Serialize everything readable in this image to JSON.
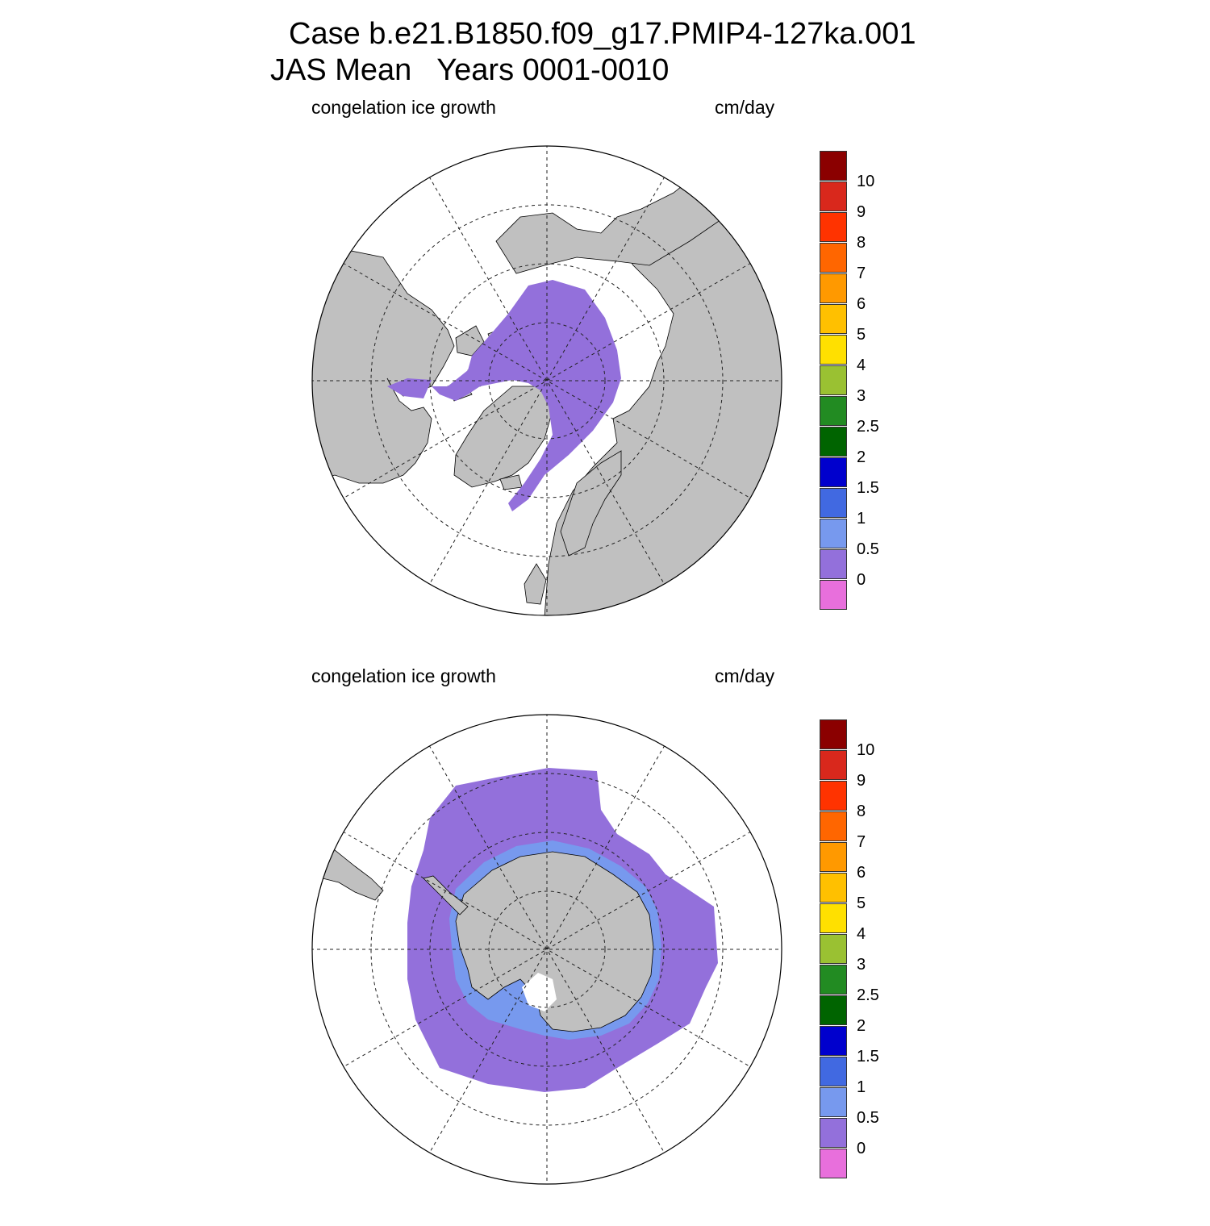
{
  "title": {
    "line1": "Case b.e21.B1850.f09_g17.PMIP4-127ka.001",
    "line2": "JAS Mean   Years 0001-0010"
  },
  "panels": [
    {
      "hemisphere": "north",
      "variable": "congelation ice growth",
      "units": "cm/day"
    },
    {
      "hemisphere": "south",
      "variable": "congelation ice growth",
      "units": "cm/day"
    }
  ],
  "colorbar": {
    "labels": [
      "10",
      "9",
      "8",
      "7",
      "6",
      "5",
      "4",
      "3",
      "2.5",
      "2",
      "1.5",
      "1",
      "0.5",
      "0"
    ],
    "colors": [
      "#8b0000",
      "#d9281c",
      "#ff3300",
      "#ff6600",
      "#ff9900",
      "#ffc000",
      "#ffe000",
      "#9ac132",
      "#228b22",
      "#006400",
      "#0000cd",
      "#4169e1",
      "#7799ee",
      "#9370db",
      "#e86fdc"
    ]
  },
  "map_colors": {
    "land": "#c0c0c0",
    "ocean": "#ffffff",
    "ice": "#9370db",
    "ice_edge": "#7799ee"
  }
}
